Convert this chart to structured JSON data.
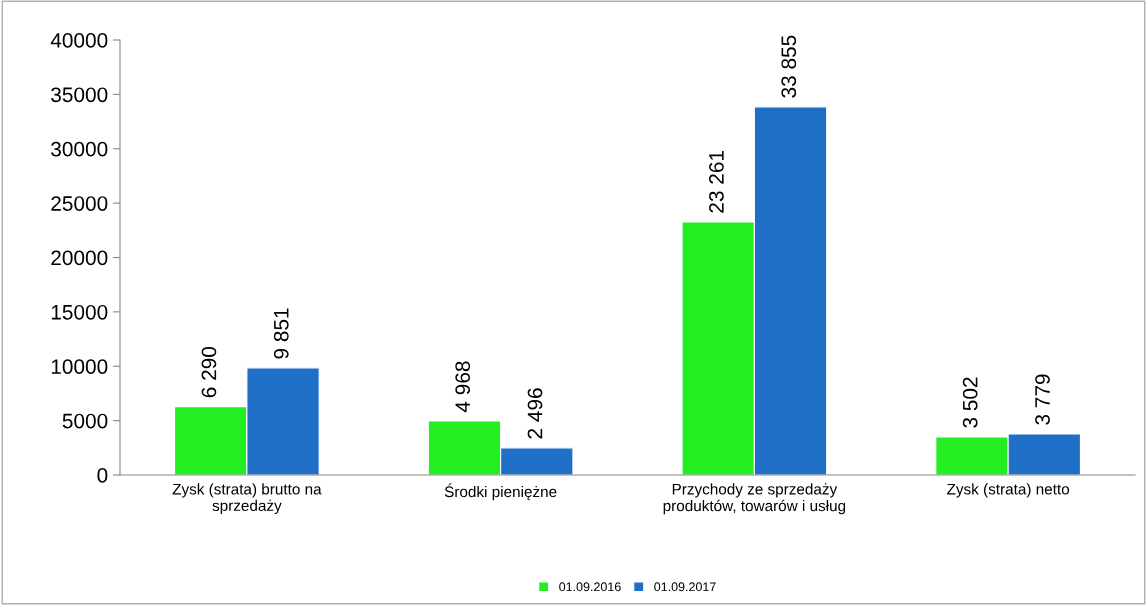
{
  "chart_data": {
    "type": "bar",
    "categories": [
      "Zysk (strata) brutto na\nsprzedaży",
      "Środki pieniężne",
      "Przychody ze sprzedaży\nproduktów, towarów i usług",
      "Zysk (strata) netto"
    ],
    "series": [
      {
        "name": "01.09.2016",
        "color": "#22ee22",
        "values": [
          6290,
          4968,
          23261,
          3502
        ],
        "value_labels": [
          "6 290",
          "4 968",
          "23 261",
          "3 502"
        ]
      },
      {
        "name": "01.09.2017",
        "color": "#1f6fc6",
        "values": [
          9851,
          2496,
          33855,
          3779
        ],
        "value_labels": [
          "9 851",
          "2 496",
          "33 855",
          "3 779"
        ]
      }
    ],
    "ylim": [
      0,
      40000
    ],
    "yticks": [
      0,
      5000,
      10000,
      15000,
      20000,
      25000,
      30000,
      35000,
      40000
    ],
    "grid": false,
    "legend": "bottom"
  }
}
